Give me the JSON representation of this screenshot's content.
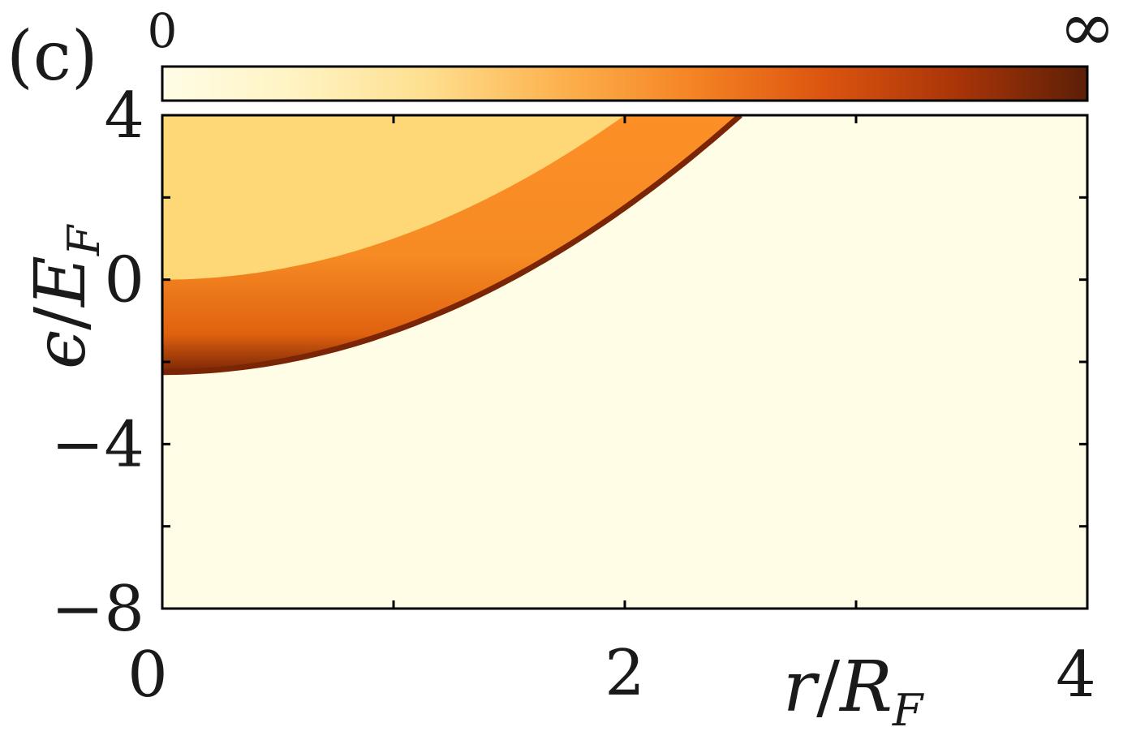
{
  "chart_data": {
    "type": "heatmap",
    "panel_label": "(c)",
    "xlabel_parts": {
      "var": "r",
      "slash": "/",
      "sym": "R",
      "sub": "F"
    },
    "ylabel_parts": {
      "var": "ϵ",
      "slash": "/",
      "sym": "E",
      "sub": "F"
    },
    "xlim": [
      0,
      4
    ],
    "ylim": [
      -8,
      4
    ],
    "x_ticks": [
      0,
      1,
      2,
      3,
      4
    ],
    "y_ticks": [
      -8,
      -6,
      -4,
      -2,
      0,
      2,
      4
    ],
    "x_tick_labels": [
      {
        "value": 0,
        "text": "0"
      },
      {
        "value": 2,
        "text": "2"
      },
      {
        "value": 4,
        "text": "4"
      }
    ],
    "y_tick_labels": [
      {
        "value": 4,
        "text": "4"
      },
      {
        "value": 0,
        "text": "0"
      },
      {
        "value": -4,
        "text": "−4"
      },
      {
        "value": -8,
        "text": "−8"
      }
    ],
    "colorbar": {
      "orientation": "horizontal",
      "placement": "top",
      "min_label": "0",
      "max_label": "∞",
      "colors": [
        "#fffde6",
        "#fff3c2",
        "#fedf8f",
        "#fdb24f",
        "#f58424",
        "#dc5510",
        "#aa3508",
        "#5c1f07"
      ]
    },
    "regions": {
      "inner_boundary": {
        "description_curve": "eps = 1.0*r^2",
        "start": [
          0,
          0
        ]
      },
      "outer_boundary": {
        "description_curve": "eps = 1.0*r^2 - 2.25",
        "start": [
          0,
          -2.25
        ]
      },
      "inner_fill": "#fed877",
      "band_colors": [
        "#fd8f27",
        "#f68a23",
        "#e0620f",
        "#7a2606"
      ],
      "background_fill": "#fffde6"
    }
  }
}
